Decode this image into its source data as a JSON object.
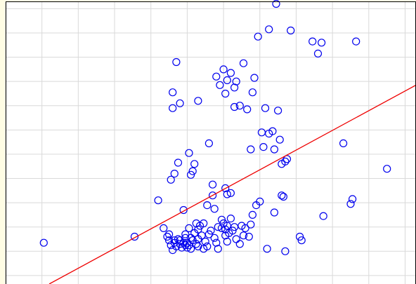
{
  "colors": {
    "page_background": "#fffde4",
    "plot_background": "#ffffff",
    "grid": "#d9d9d9",
    "frame": "#000000",
    "points": "#0000ee",
    "fit_line": "#ee0000"
  },
  "chart_data": {
    "type": "scatter",
    "title": "",
    "xlabel": "",
    "ylabel": "",
    "grid": true,
    "xlim": [
      0,
      11.3
    ],
    "ylim": [
      -0.35,
      11.3
    ],
    "marker": "open-circle",
    "series": [
      {
        "points": [
          [
            1.05,
            1.35
          ],
          [
            3.55,
            1.6
          ],
          [
            4.2,
            3.1
          ],
          [
            4.6,
            6.9
          ],
          [
            4.75,
            4.65
          ],
          [
            4.8,
            7.1
          ],
          [
            4.7,
            8.8
          ],
          [
            4.6,
            7.55
          ],
          [
            4.65,
            4.2
          ],
          [
            4.55,
            3.95
          ],
          [
            4.65,
            1.45
          ],
          [
            4.5,
            1.7
          ],
          [
            4.9,
            2.7
          ],
          [
            5.05,
            5.05
          ],
          [
            5.1,
            4.15
          ],
          [
            5.15,
            4.3
          ],
          [
            5.2,
            4.6
          ],
          [
            5.3,
            7.2
          ],
          [
            5.6,
            5.45
          ],
          [
            5.7,
            3.75
          ],
          [
            5.8,
            8.2
          ],
          [
            5.9,
            7.85
          ],
          [
            6.05,
            7.5
          ],
          [
            6.0,
            8.5
          ],
          [
            6.1,
            8.05
          ],
          [
            6.2,
            8.35
          ],
          [
            6.3,
            7.75
          ],
          [
            6.35,
            8.0
          ],
          [
            6.3,
            6.95
          ],
          [
            6.45,
            7.0
          ],
          [
            6.55,
            8.75
          ],
          [
            6.65,
            6.85
          ],
          [
            6.75,
            5.2
          ],
          [
            6.8,
            7.55
          ],
          [
            6.85,
            8.15
          ],
          [
            6.95,
            9.85
          ],
          [
            7.05,
            5.9
          ],
          [
            7.1,
            5.3
          ],
          [
            7.15,
            6.9
          ],
          [
            7.25,
            5.85
          ],
          [
            7.35,
            5.95
          ],
          [
            7.4,
            5.2
          ],
          [
            7.5,
            6.8
          ],
          [
            7.55,
            5.6
          ],
          [
            7.6,
            4.6
          ],
          [
            7.7,
            4.7
          ],
          [
            7.75,
            4.8
          ],
          [
            7.85,
            10.1
          ],
          [
            7.25,
            10.15
          ],
          [
            7.45,
            11.2
          ],
          [
            8.45,
            9.65
          ],
          [
            8.7,
            9.6
          ],
          [
            8.6,
            9.15
          ],
          [
            9.65,
            9.65
          ],
          [
            9.3,
            5.45
          ],
          [
            9.55,
            3.15
          ],
          [
            9.5,
            2.95
          ],
          [
            10.5,
            4.4
          ],
          [
            8.75,
            2.45
          ],
          [
            8.1,
            1.6
          ],
          [
            8.15,
            1.45
          ],
          [
            7.7,
            1.0
          ],
          [
            7.2,
            1.1
          ],
          [
            7.4,
            2.6
          ],
          [
            7.6,
            3.3
          ],
          [
            7.65,
            3.25
          ],
          [
            6.9,
            2.9
          ],
          [
            7.0,
            3.05
          ],
          [
            6.8,
            2.5
          ],
          [
            5.95,
            2.3
          ],
          [
            6.05,
            3.6
          ],
          [
            6.1,
            3.35
          ],
          [
            6.2,
            3.4
          ],
          [
            5.7,
            3.3
          ],
          [
            5.75,
            2.75
          ],
          [
            5.55,
            2.9
          ],
          [
            5.45,
            2.15
          ],
          [
            5.35,
            2.05
          ],
          [
            5.3,
            1.9
          ],
          [
            5.2,
            1.75
          ],
          [
            5.1,
            1.55
          ],
          [
            5.0,
            1.35
          ],
          [
            4.95,
            1.25
          ],
          [
            4.85,
            1.15
          ],
          [
            4.8,
            1.3
          ],
          [
            4.75,
            1.5
          ],
          [
            4.7,
            1.2
          ],
          [
            4.65,
            1.35
          ],
          [
            4.6,
            1.05
          ],
          [
            4.55,
            1.25
          ],
          [
            4.5,
            1.45
          ],
          [
            4.45,
            1.6
          ],
          [
            4.35,
            1.95
          ],
          [
            4.8,
            1.45
          ],
          [
            4.9,
            1.35
          ],
          [
            5.0,
            1.15
          ],
          [
            5.05,
            1.25
          ],
          [
            5.15,
            1.45
          ],
          [
            5.25,
            1.3
          ],
          [
            5.3,
            1.5
          ],
          [
            5.4,
            1.65
          ],
          [
            5.5,
            1.4
          ],
          [
            5.55,
            1.2
          ],
          [
            5.6,
            1.7
          ],
          [
            5.65,
            1.85
          ],
          [
            5.75,
            1.55
          ],
          [
            5.8,
            1.35
          ],
          [
            5.85,
            2.0
          ],
          [
            5.95,
            1.95
          ],
          [
            6.0,
            2.15
          ],
          [
            6.05,
            1.9
          ],
          [
            6.1,
            2.05
          ],
          [
            6.15,
            1.75
          ],
          [
            6.3,
            2.0
          ],
          [
            6.35,
            1.5
          ],
          [
            6.45,
            1.3
          ],
          [
            6.55,
            1.65
          ],
          [
            6.6,
            1.95
          ],
          [
            6.7,
            1.6
          ],
          [
            6.75,
            2.1
          ],
          [
            6.5,
            2.05
          ],
          [
            6.25,
            1.85
          ],
          [
            6.2,
            2.35
          ],
          [
            6.05,
            1.65
          ],
          [
            6.1,
            1.4
          ],
          [
            4.95,
            1.55
          ],
          [
            5.1,
            1.1
          ],
          [
            5.3,
            1.2
          ],
          [
            5.45,
            1.1
          ],
          [
            5.85,
            1.1
          ],
          [
            5.25,
            2.15
          ],
          [
            5.05,
            1.95
          ],
          [
            4.95,
            1.7
          ]
        ]
      }
    ],
    "fit_line": {
      "points": [
        [
          1.2,
          -0.35
        ],
        [
          11.3,
          7.85
        ]
      ]
    }
  }
}
